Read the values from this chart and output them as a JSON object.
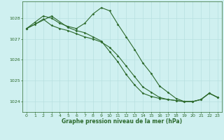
{
  "title": "Graphe pression niveau de la mer (hPa)",
  "background_color": "#cff0f0",
  "grid_color": "#b8e0e0",
  "line_color": "#2d6a2d",
  "xlim": [
    -0.5,
    23.5
  ],
  "ylim": [
    1023.5,
    1028.8
  ],
  "yticks": [
    1024,
    1025,
    1026,
    1027,
    1028
  ],
  "xticks": [
    0,
    1,
    2,
    3,
    4,
    5,
    6,
    7,
    8,
    9,
    10,
    11,
    12,
    13,
    14,
    15,
    16,
    17,
    18,
    19,
    20,
    21,
    22,
    23
  ],
  "series1_x": [
    0,
    1,
    2,
    3,
    4,
    5,
    6,
    7,
    8,
    9,
    10,
    11,
    12,
    13,
    14,
    15,
    16,
    17,
    18,
    19,
    20,
    21,
    22,
    23
  ],
  "series1_y": [
    1027.5,
    1027.8,
    1028.1,
    1028.0,
    1027.75,
    1027.6,
    1027.5,
    1027.75,
    1028.2,
    1028.5,
    1028.35,
    1027.7,
    1027.1,
    1026.5,
    1025.85,
    1025.35,
    1024.75,
    1024.45,
    1024.15,
    1024.0,
    1024.0,
    1024.1,
    1024.4,
    1024.2
  ],
  "series2_x": [
    0,
    1,
    2,
    3,
    4,
    5,
    6,
    7,
    8,
    9,
    10,
    11,
    12,
    13,
    14,
    15,
    16,
    17,
    18,
    19,
    20,
    21,
    22,
    23
  ],
  "series2_y": [
    1027.5,
    1027.7,
    1027.95,
    1027.65,
    1027.5,
    1027.4,
    1027.25,
    1027.1,
    1027.0,
    1026.85,
    1026.6,
    1026.2,
    1025.7,
    1025.2,
    1024.7,
    1024.45,
    1024.2,
    1024.1,
    1024.05,
    1024.0,
    1024.0,
    1024.1,
    1024.4,
    1024.2
  ],
  "series3_x": [
    0,
    3,
    5,
    6,
    7,
    8,
    9,
    10,
    11,
    12,
    13,
    14,
    15,
    16,
    17,
    18,
    19,
    20,
    21,
    22,
    23
  ],
  "series3_y": [
    1027.5,
    1028.1,
    1027.55,
    1027.4,
    1027.3,
    1027.1,
    1026.9,
    1026.4,
    1025.9,
    1025.3,
    1024.8,
    1024.4,
    1024.25,
    1024.15,
    1024.1,
    1024.05,
    1024.0,
    1024.0,
    1024.1,
    1024.4,
    1024.2
  ],
  "title_fontsize": 5.5,
  "tick_fontsize": 4.5,
  "marker_size": 1.8,
  "line_width": 0.8
}
